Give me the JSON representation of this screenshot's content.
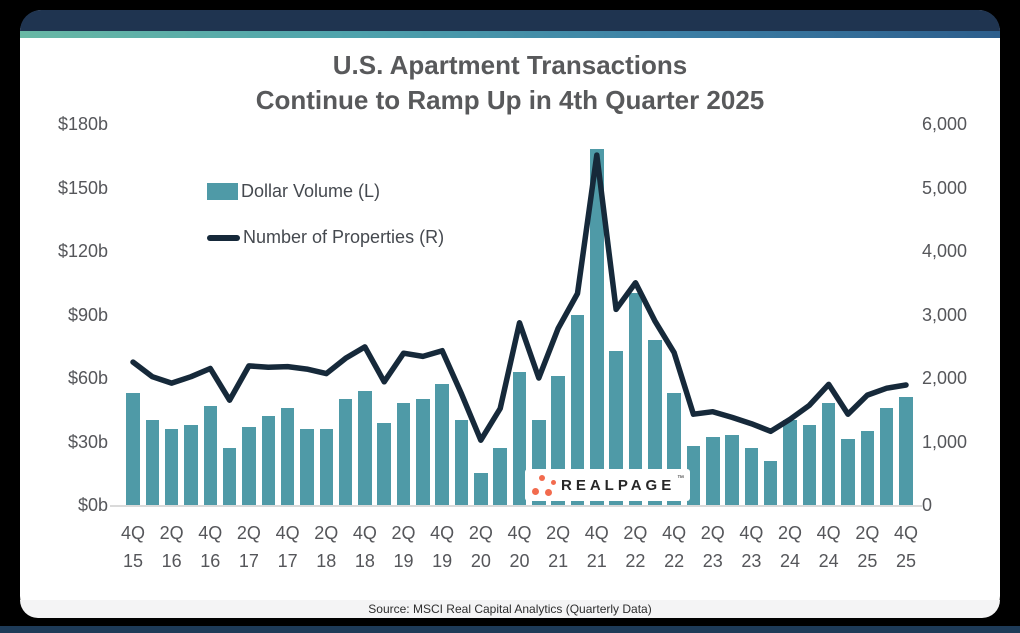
{
  "header": {
    "title_line1": "U.S. Apartment Transactions",
    "title_line2": "Continue to Ramp Up in 4th Quarter 2025"
  },
  "legend": {
    "bar_label": "Dollar Volume (L)",
    "line_label": "Number of Properties (R)"
  },
  "logo": {
    "text": "REALPAGE",
    "trademark": "™"
  },
  "footer": {
    "source": "Source: MSCI Real Capital Analytics (Quarterly Data)"
  },
  "colors": {
    "bar": "#4F9AA7",
    "line": "#16293A",
    "header": "#1F3450",
    "stripe_gradient": [
      "#68B8A5",
      "#4FA3AC",
      "#3C7FA5",
      "#2D5E8C"
    ],
    "title": "#58595B",
    "axis": "#55565A",
    "legend": "#45494F",
    "baseline": "#DADADA",
    "source_bg": "#F4F4F5",
    "source_text": "#2E2E2E",
    "logo_dot": "#F26B4E",
    "logo_text": "#272727",
    "bottom_strip": "#1E3B58",
    "page_bg": "#000000",
    "card_bg": "#FFFFFF"
  },
  "chart_data": {
    "type": "bar+line combo",
    "title": "U.S. Apartment Transactions Continue to Ramp Up in 4th Quarter 2025",
    "categories": [
      "4Q 15",
      "1Q 16",
      "2Q 16",
      "3Q 16",
      "4Q 16",
      "1Q 17",
      "2Q 17",
      "3Q 17",
      "4Q 17",
      "1Q 18",
      "2Q 18",
      "3Q 18",
      "4Q 18",
      "1Q 19",
      "2Q 19",
      "3Q 19",
      "4Q 19",
      "1Q 20",
      "2Q 20",
      "3Q 20",
      "4Q 20",
      "1Q 21",
      "2Q 21",
      "3Q 21",
      "4Q 21",
      "1Q 22",
      "2Q 22",
      "3Q 22",
      "4Q 22",
      "1Q 23",
      "2Q 23",
      "3Q 23",
      "4Q 23",
      "1Q 24",
      "2Q 24",
      "3Q 24",
      "4Q 24",
      "1Q 25",
      "2Q 25",
      "3Q 25",
      "4Q 25"
    ],
    "x_tick_step": 2,
    "series": [
      {
        "name": "Dollar Volume (L)",
        "type": "bar",
        "axis": "left",
        "unit": "billions USD",
        "values": [
          53,
          40,
          36,
          38,
          47,
          27,
          37,
          42,
          46,
          36,
          36,
          50,
          54,
          39,
          48,
          50,
          57,
          40,
          15,
          27,
          63,
          40,
          61,
          90,
          168,
          73,
          100,
          78,
          53,
          28,
          32,
          33,
          27,
          21,
          40,
          38,
          48,
          31,
          35,
          46,
          51
        ]
      },
      {
        "name": "Number of Properties (R)",
        "type": "line",
        "axis": "right",
        "unit": "properties",
        "values": [
          2250,
          2020,
          1920,
          2020,
          2150,
          1650,
          2190,
          2170,
          2180,
          2140,
          2070,
          2310,
          2490,
          1940,
          2390,
          2340,
          2430,
          1750,
          1020,
          1520,
          2870,
          2000,
          2780,
          3330,
          5510,
          3080,
          3500,
          2900,
          2400,
          1430,
          1470,
          1380,
          1280,
          1160,
          1350,
          1570,
          1900,
          1430,
          1730,
          1840,
          1890
        ]
      }
    ],
    "left_axis": {
      "ticks": [
        "$180b",
        "$150b",
        "$120b",
        "$90b",
        "$60b",
        "$30b",
        "$0b"
      ],
      "min": 0,
      "max": 180
    },
    "right_axis": {
      "ticks": [
        "6,000",
        "5,000",
        "4,000",
        "3,000",
        "2,000",
        "1,000",
        "0"
      ],
      "min": 0,
      "max": 6000
    },
    "grid": false,
    "legend_position": "top-left-inside"
  }
}
